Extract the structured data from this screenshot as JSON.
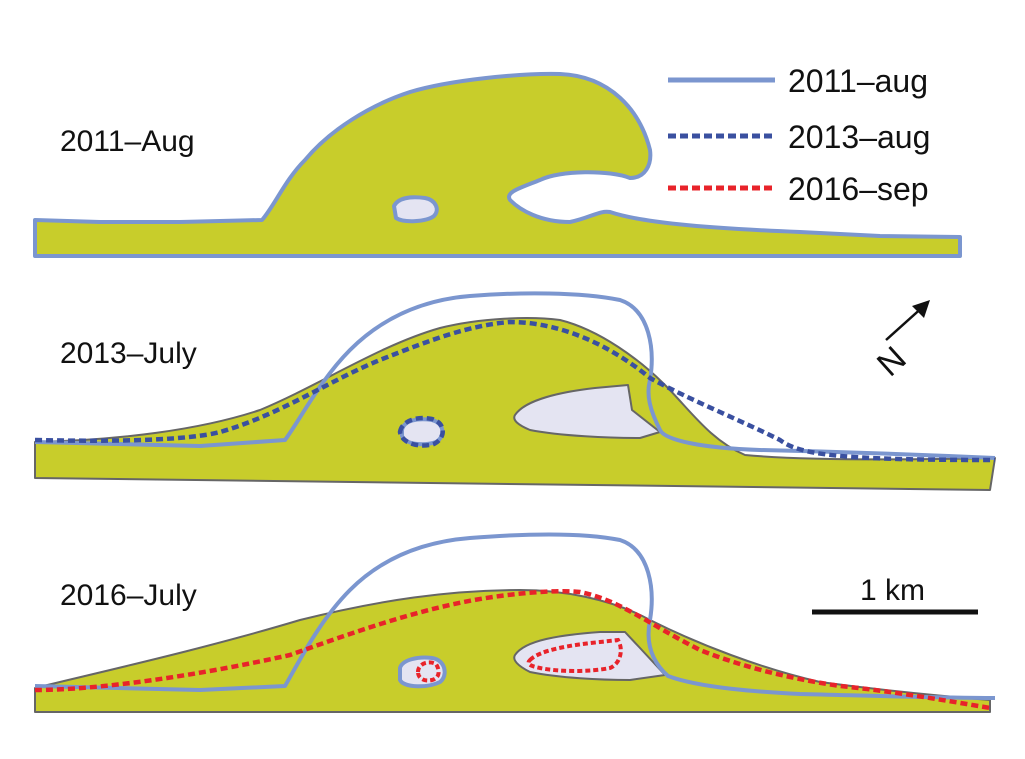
{
  "panels": [
    {
      "label": "2011–Aug"
    },
    {
      "label": "2013–July"
    },
    {
      "label": "2016–July"
    }
  ],
  "legend": [
    {
      "label": "2011–aug",
      "style": "solid",
      "color": "#7b96cf"
    },
    {
      "label": "2013–aug",
      "style": "dashed",
      "color": "#3a50a0"
    },
    {
      "label": "2016–sep",
      "style": "dashed",
      "color": "#e8232a"
    }
  ],
  "scale_bar": {
    "label": "1 km"
  },
  "north_arrow": {
    "symbol": "N"
  },
  "colors": {
    "land": "#c8cd2b",
    "lake": "#e4e4f2",
    "outline_grey": "#666666",
    "text": "#111111"
  }
}
